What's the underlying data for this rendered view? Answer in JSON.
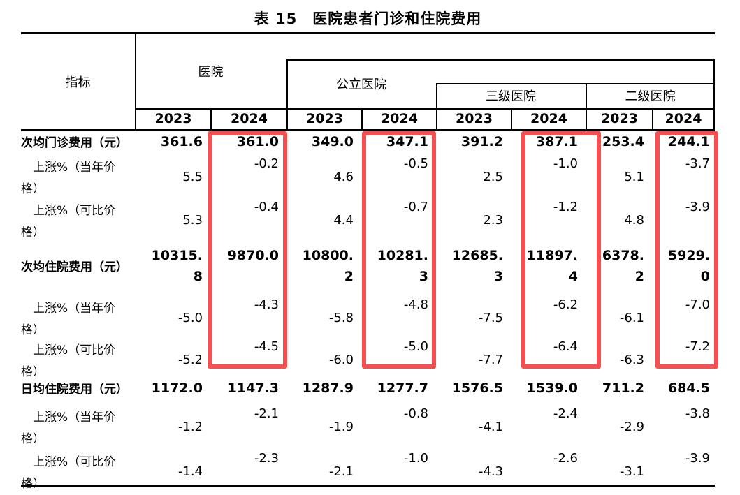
{
  "title": "表 15　医院患者门诊和住院费用",
  "accent_color": "#f5504f",
  "highlight": {
    "highlighted_year": "2024",
    "box_color": "#f5504f"
  },
  "header": {
    "indicator": "指标",
    "groups": {
      "hospital": "医院",
      "public": "公立医院",
      "tertiary": "三级医院",
      "secondary": "二级医院"
    },
    "years": [
      "2023",
      "2024",
      "2023",
      "2024",
      "2023",
      "2024",
      "2023",
      "2024"
    ]
  },
  "rows": [
    {
      "type": "fee",
      "label": "次均门诊费用（元）",
      "values": [
        "361.6",
        "361.0",
        "349.0",
        "347.1",
        "391.2",
        "387.1",
        "253.4",
        "244.1"
      ]
    },
    {
      "type": "rise",
      "label": "上涨%（当年价\n格）",
      "values": [
        "5.5",
        "-0.2",
        "4.6",
        "-0.5",
        "2.5",
        "-1.0",
        "5.1",
        "-3.7"
      ]
    },
    {
      "type": "rise",
      "label": "上涨%（可比价\n格）",
      "values": [
        "5.3",
        "-0.4",
        "4.4",
        "-0.7",
        "2.3",
        "-1.2",
        "4.8",
        "-3.9"
      ]
    },
    {
      "type": "feew",
      "label": "次均住院费用（元）",
      "values": [
        "10315.\n8",
        "9870.0",
        "10800.\n2",
        "10281.\n3",
        "12685.\n3",
        "11897.\n4",
        "6378.\n2",
        "5929.\n0"
      ]
    },
    {
      "type": "rise",
      "label": "上涨%（当年价\n格）",
      "values": [
        "-5.0",
        "-4.3",
        "-5.8",
        "-4.8",
        "-7.5",
        "-6.2",
        "-6.1",
        "-7.0"
      ]
    },
    {
      "type": "rise",
      "label": "上涨%（可比价\n格）",
      "values": [
        "-5.2",
        "-4.5",
        "-6.0",
        "-5.0",
        "-7.7",
        "-6.4",
        "-6.3",
        "-7.2"
      ]
    },
    {
      "type": "fee",
      "label": "日均住院费用（元）",
      "values": [
        "1172.0",
        "1147.3",
        "1287.9",
        "1277.7",
        "1576.5",
        "1539.0",
        "711.2",
        "684.5"
      ]
    },
    {
      "type": "rise",
      "label": "上涨%（当年价\n格）",
      "values": [
        "-1.2",
        "-2.1",
        "-1.9",
        "-0.8",
        "-4.1",
        "-2.4",
        "-2.9",
        "-3.8"
      ]
    },
    {
      "type": "rise",
      "label": "上涨%（可比价\n格）",
      "values": [
        "-1.4",
        "-2.3",
        "-2.1",
        "-1.0",
        "-4.3",
        "-2.6",
        "-3.1",
        "-3.9"
      ]
    }
  ]
}
